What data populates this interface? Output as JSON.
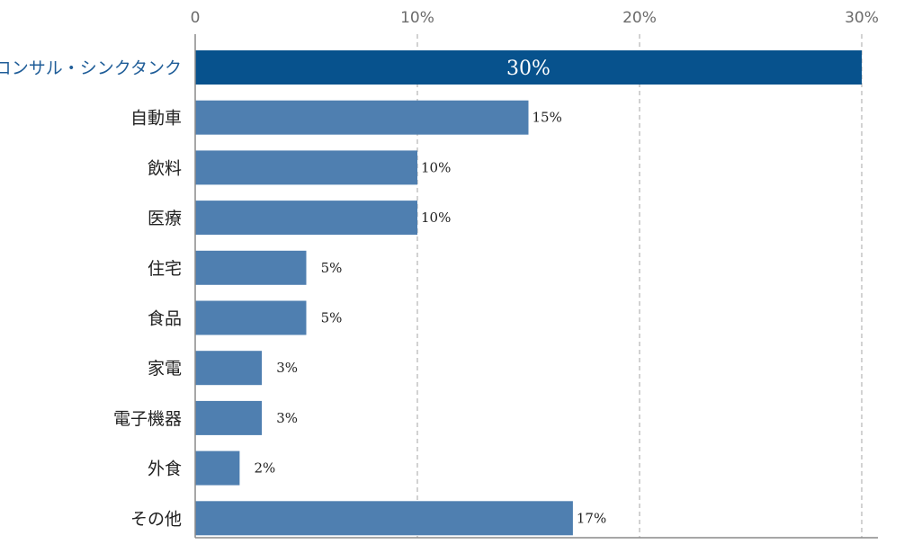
{
  "chart_data": {
    "type": "bar",
    "orientation": "horizontal",
    "title": "",
    "xlabel": "",
    "ylabel": "",
    "xlim": [
      0,
      30
    ],
    "xticks": [
      {
        "value": 0,
        "label": "0"
      },
      {
        "value": 10,
        "label": "10%"
      },
      {
        "value": 20,
        "label": "20%"
      },
      {
        "value": 30,
        "label": "30%"
      }
    ],
    "grid": "vertical dashed",
    "categories": [
      "コンサル・シンクタンク",
      "自動車",
      "飲料",
      "医療",
      "住宅",
      "食品",
      "家電",
      "電子機器",
      "外食",
      "その他"
    ],
    "values": [
      30,
      15,
      10,
      10,
      5,
      5,
      3,
      3,
      2,
      17
    ],
    "value_labels": [
      "30%",
      "15%",
      "10%",
      "10%",
      "5%",
      "5%",
      "3%",
      "3%",
      "2%",
      "17%"
    ],
    "highlight_index": 0,
    "colors": {
      "bar": "#4f7fb0",
      "highlight_bar": "#07528d",
      "highlight_text": "#1f5d98",
      "grid": "#b9b9b9",
      "axis": "#8a8a8a"
    }
  }
}
